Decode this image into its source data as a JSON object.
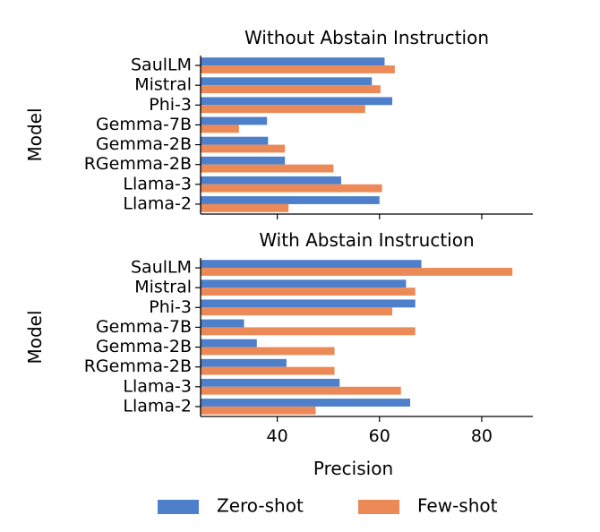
{
  "chart_data": {
    "type": "bar",
    "orientation": "horizontal",
    "xlabel": "Precision",
    "ylabel": "Model",
    "xlim": [
      25,
      90
    ],
    "xticks": [
      40,
      60,
      80
    ],
    "legend": {
      "placement": "bottom",
      "entries": [
        "Zero-shot",
        "Few-shot"
      ]
    },
    "colors": {
      "Zero-shot": "#4e7fcb",
      "Few-shot": "#ec8a57"
    },
    "categories": [
      "SaulLM",
      "Mistral",
      "Phi-3",
      "Gemma-7B",
      "Gemma-2B",
      "RGemma-2B",
      "Llama-3",
      "Llama-2"
    ],
    "panels": [
      {
        "title": "Without Abstain Instruction",
        "series": [
          {
            "name": "Zero-shot",
            "values": [
              61,
              58.5,
              62.5,
              38,
              38.2,
              41.5,
              52.5,
              60
            ]
          },
          {
            "name": "Few-shot",
            "values": [
              63,
              60.2,
              57.2,
              32.5,
              41.5,
              51,
              60.5,
              42.2
            ]
          }
        ]
      },
      {
        "title": "With Abstain Instruction",
        "series": [
          {
            "name": "Zero-shot",
            "values": [
              68.2,
              65.2,
              67,
              33.5,
              36,
              41.8,
              52.2,
              66
            ]
          },
          {
            "name": "Few-shot",
            "values": [
              86,
              67,
              62.5,
              67,
              51.2,
              51.2,
              64.2,
              47.5
            ]
          }
        ]
      }
    ]
  }
}
